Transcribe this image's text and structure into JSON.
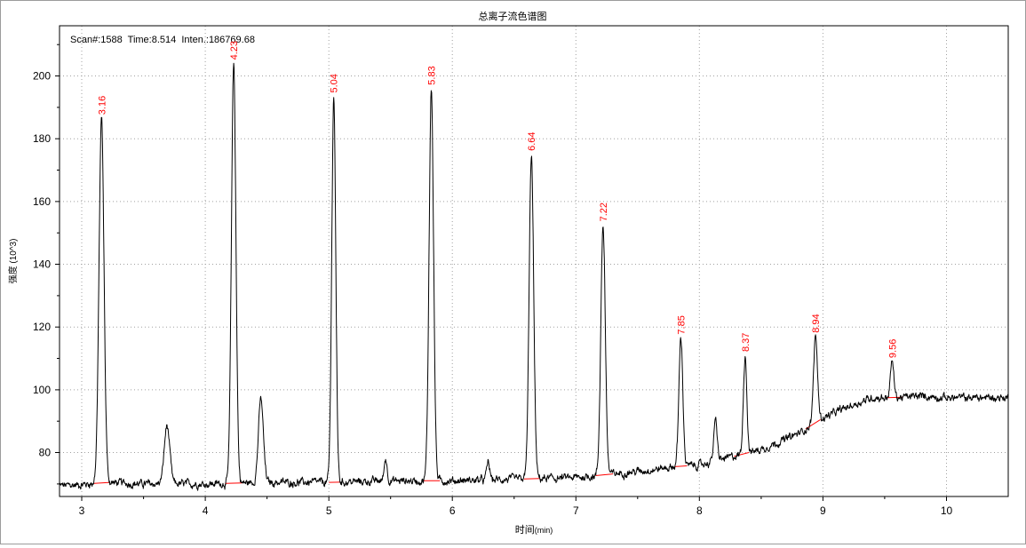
{
  "colors": {
    "trace": "#000000",
    "peak_label": "#ff0000",
    "baseline": "#ff0000",
    "grid": "#a0a0a0",
    "axis": "#000000"
  },
  "chart_data": {
    "type": "line",
    "title": "总离子流色谱图",
    "xlabel": "时间",
    "xlabel_unit": "(min)",
    "ylabel": "强度 (10^3)",
    "info": "Scan#:1588  Time:8.514  Inten.:186769.68",
    "xlim": [
      2.82,
      10.5
    ],
    "ylim": [
      66,
      216
    ],
    "x_ticks": [
      3,
      4,
      5,
      6,
      7,
      8,
      9,
      10
    ],
    "y_ticks": [
      80,
      100,
      120,
      140,
      160,
      180,
      200
    ],
    "grid": true,
    "baseline_points": [
      [
        2.9,
        69.5
      ],
      [
        3.2,
        70.5
      ],
      [
        3.5,
        70.0
      ],
      [
        4.0,
        70.0
      ],
      [
        4.5,
        70.5
      ],
      [
        5.0,
        70.5
      ],
      [
        5.5,
        71.0
      ],
      [
        6.0,
        71.0
      ],
      [
        6.5,
        71.5
      ],
      [
        7.0,
        72.0
      ],
      [
        7.5,
        74.0
      ],
      [
        7.8,
        75.5
      ],
      [
        8.0,
        76.0
      ],
      [
        8.2,
        78.0
      ],
      [
        8.5,
        81.0
      ],
      [
        8.8,
        86.0
      ],
      [
        9.0,
        91.0
      ],
      [
        9.2,
        94.5
      ],
      [
        9.4,
        97.5
      ],
      [
        9.6,
        97.5
      ],
      [
        9.8,
        98.0
      ],
      [
        10.0,
        97.5
      ],
      [
        10.2,
        97.5
      ],
      [
        10.5,
        97.5
      ]
    ],
    "peaks": [
      {
        "x": 3.16,
        "height": 186.5,
        "width": 0.02,
        "label": "3.16",
        "baseline_segment": [
          3.1,
          3.22
        ]
      },
      {
        "x": 3.69,
        "height": 88.5,
        "width": 0.022,
        "label": "",
        "baseline_segment": null
      },
      {
        "x": 4.23,
        "height": 204.0,
        "width": 0.018,
        "label": "4.23",
        "baseline_segment": [
          4.16,
          4.3
        ]
      },
      {
        "x": 4.45,
        "height": 97.0,
        "width": 0.02,
        "label": "",
        "baseline_segment": null
      },
      {
        "x": 5.04,
        "height": 193.5,
        "width": 0.016,
        "label": "5.04",
        "baseline_segment": [
          5.0,
          5.09
        ]
      },
      {
        "x": 5.46,
        "height": 78.0,
        "width": 0.012,
        "label": "",
        "baseline_segment": null
      },
      {
        "x": 5.83,
        "height": 196.0,
        "width": 0.018,
        "label": "5.83",
        "baseline_segment": [
          5.76,
          5.9
        ]
      },
      {
        "x": 6.29,
        "height": 77.0,
        "width": 0.012,
        "label": "",
        "baseline_segment": null
      },
      {
        "x": 6.64,
        "height": 175.0,
        "width": 0.018,
        "label": "6.64",
        "baseline_segment": [
          6.58,
          6.71
        ]
      },
      {
        "x": 7.22,
        "height": 152.5,
        "width": 0.018,
        "label": "7.22",
        "baseline_segment": [
          7.16,
          7.3
        ]
      },
      {
        "x": 7.85,
        "height": 116.5,
        "width": 0.016,
        "label": "7.85",
        "baseline_segment": [
          7.8,
          7.9
        ]
      },
      {
        "x": 8.13,
        "height": 90.0,
        "width": 0.014,
        "label": "",
        "baseline_segment": null
      },
      {
        "x": 8.37,
        "height": 111.0,
        "width": 0.014,
        "label": "8.37",
        "baseline_segment": [
          8.28,
          8.4
        ]
      },
      {
        "x": 8.94,
        "height": 117.0,
        "width": 0.016,
        "label": "8.94",
        "baseline_segment": [
          8.86,
          8.98
        ]
      },
      {
        "x": 9.56,
        "height": 109.0,
        "width": 0.014,
        "label": "9.56",
        "baseline_segment": [
          9.52,
          9.64
        ]
      }
    ]
  }
}
